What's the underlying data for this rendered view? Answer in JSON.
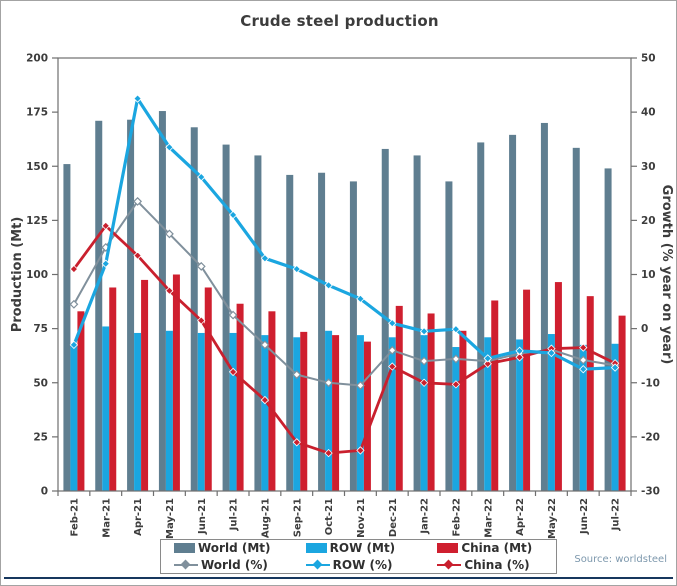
{
  "title": "Crude steel production",
  "source": "Source: worldsteel",
  "colors": {
    "world_bar": "#5f7e90",
    "row_bar": "#1ba6e0",
    "china_bar": "#cf1f2f",
    "world_line": "#80909c",
    "row_line": "#1ba6e0",
    "china_line": "#c9202e",
    "axis_frame": "#6e6e6e",
    "tick_text": "#3d3d3d",
    "title_text": "#3c3c3c",
    "navy_rule": "#17375e",
    "source_text": "#7d98ad"
  },
  "chart_data": {
    "type": "bar",
    "subtype": "combo-bar-line-dual-axis",
    "title": "Crude steel production",
    "categories": [
      "Feb-21",
      "Mar-21",
      "Apr-21",
      "May-21",
      "Jun-21",
      "Jul-21",
      "Aug-21",
      "Sep-21",
      "Oct-21",
      "Nov-21",
      "Dec-21",
      "Jan-22",
      "Feb-22",
      "Mar-22",
      "Apr-22",
      "May-22",
      "Jun-22",
      "Jul-22"
    ],
    "bar_series": [
      {
        "name": "World (Mt)",
        "axis": "left",
        "color": "#5f7e90",
        "values": [
          151,
          171,
          171.5,
          175.5,
          168,
          160,
          155,
          146,
          147,
          143,
          158,
          155,
          143,
          161,
          164.5,
          170,
          158.5,
          149
        ]
      },
      {
        "name": "ROW (Mt)",
        "axis": "left",
        "color": "#1ba6e0",
        "values": [
          67,
          76,
          73,
          74,
          73,
          73,
          72,
          71,
          74,
          72,
          71,
          72,
          66.5,
          71,
          70,
          72.5,
          67.5,
          68
        ]
      },
      {
        "name": "China (Mt)",
        "axis": "left",
        "color": "#cf1f2f",
        "values": [
          83,
          94,
          97.5,
          100,
          94,
          86.5,
          83,
          73.5,
          72,
          69,
          85.5,
          82,
          74,
          88,
          93,
          96.5,
          90,
          81
        ]
      }
    ],
    "line_series": [
      {
        "name": "World (%)",
        "axis": "right",
        "color": "#80909c",
        "marker": "open-diamond",
        "values": [
          4.5,
          15,
          23.5,
          17.5,
          11.5,
          2.5,
          -3,
          -8.5,
          -10,
          -10.5,
          -4,
          -6,
          -5.6,
          -6,
          -4.6,
          -3.9,
          -5.8,
          -6.8
        ]
      },
      {
        "name": "ROW (%)",
        "axis": "right",
        "color": "#1ba6e0",
        "marker": "diamond",
        "values": [
          -3,
          12,
          42.5,
          33.5,
          28,
          21,
          13,
          11,
          8,
          5.5,
          1,
          -0.5,
          -0.1,
          -5.5,
          -4.1,
          -4.5,
          -7.5,
          -7.2
        ]
      },
      {
        "name": "China (%)",
        "axis": "right",
        "color": "#c9202e",
        "marker": "diamond",
        "values": [
          11,
          19,
          13.5,
          7,
          1.5,
          -8,
          -13.2,
          -21,
          -23,
          -22.5,
          -7,
          -10,
          -10.3,
          -6.5,
          -5.3,
          -3.7,
          -3.5,
          -6.4
        ]
      }
    ],
    "y_left": {
      "label": "Production (Mt)",
      "min": 0,
      "max": 200,
      "tick_step": 25,
      "ticks": [
        0,
        25,
        50,
        75,
        100,
        125,
        150,
        175,
        200
      ]
    },
    "y_right": {
      "label": "Growth (% year on year)",
      "min": -30,
      "max": 50,
      "tick_step": 10,
      "ticks": [
        -30,
        -20,
        -10,
        0,
        10,
        20,
        30,
        40,
        50
      ]
    },
    "grid": false,
    "legend_position": "bottom"
  },
  "legend": {
    "row1": [
      "World (Mt)",
      "ROW (Mt)",
      "China (Mt)"
    ],
    "row2": [
      "World (%)",
      "ROW (%)",
      "China (%)"
    ]
  }
}
